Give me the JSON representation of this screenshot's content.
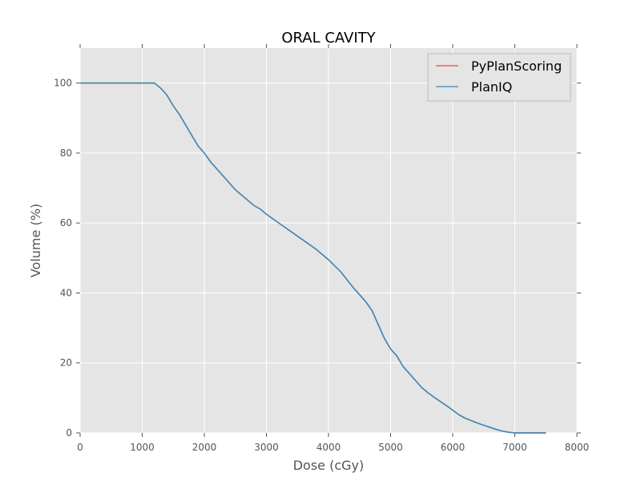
{
  "chart_data": {
    "type": "line",
    "title": "ORAL CAVITY",
    "xlabel": "Dose (cGy)",
    "ylabel": "Volume (%)",
    "xlim": [
      0,
      8000
    ],
    "ylim": [
      0,
      110
    ],
    "xticks": [
      0,
      1000,
      2000,
      3000,
      4000,
      5000,
      6000,
      7000,
      8000
    ],
    "yticks": [
      0,
      20,
      40,
      60,
      80,
      100
    ],
    "grid": true,
    "legend_position": "upper right",
    "series": [
      {
        "name": "PyPlanScoring",
        "color": "#e24a33",
        "x": [
          0,
          1100,
          1200,
          1300,
          1400,
          1500,
          1600,
          1700,
          1800,
          1900,
          2000,
          2100,
          2200,
          2300,
          2400,
          2500,
          2600,
          2700,
          2800,
          2900,
          3000,
          3200,
          3400,
          3600,
          3800,
          4000,
          4200,
          4400,
          4600,
          4700,
          4800,
          4900,
          5000,
          5100,
          5200,
          5300,
          5400,
          5500,
          5600,
          5700,
          5800,
          5900,
          6000,
          6100,
          6200,
          6300,
          6400,
          6500,
          6600,
          6700,
          6800,
          6900,
          7000,
          7500
        ],
        "y": [
          100,
          100,
          100,
          98.5,
          96.5,
          93.5,
          91,
          88,
          85,
          82,
          80,
          77.5,
          75.5,
          73.5,
          71.5,
          69.5,
          68,
          66.5,
          65,
          64,
          62.5,
          60,
          57.5,
          55,
          52.5,
          49.5,
          46,
          41.5,
          37.5,
          35,
          31,
          27,
          24,
          22,
          19,
          17,
          15,
          13,
          11.5,
          10.2,
          9,
          7.8,
          6.5,
          5.2,
          4.2,
          3.5,
          2.8,
          2.2,
          1.6,
          1,
          0.5,
          0.2,
          0,
          0
        ]
      },
      {
        "name": "PlanIQ",
        "color": "#348abd",
        "x": [
          0,
          1100,
          1200,
          1300,
          1400,
          1500,
          1600,
          1700,
          1800,
          1900,
          2000,
          2100,
          2200,
          2300,
          2400,
          2500,
          2600,
          2700,
          2800,
          2900,
          3000,
          3200,
          3400,
          3600,
          3800,
          4000,
          4200,
          4400,
          4600,
          4700,
          4800,
          4900,
          5000,
          5100,
          5200,
          5300,
          5400,
          5500,
          5600,
          5700,
          5800,
          5900,
          6000,
          6100,
          6200,
          6300,
          6400,
          6500,
          6600,
          6700,
          6800,
          6900,
          7000,
          7500
        ],
        "y": [
          100,
          100,
          100,
          98.5,
          96.5,
          93.5,
          91,
          88,
          85,
          82,
          80,
          77.5,
          75.5,
          73.5,
          71.5,
          69.5,
          68,
          66.5,
          65,
          64,
          62.5,
          60,
          57.5,
          55,
          52.5,
          49.5,
          46,
          41.5,
          37.5,
          35,
          31,
          27,
          24,
          22,
          19,
          17,
          15,
          13,
          11.5,
          10.2,
          9,
          7.8,
          6.5,
          5.2,
          4.2,
          3.5,
          2.8,
          2.2,
          1.6,
          1,
          0.5,
          0.2,
          0,
          0
        ]
      }
    ]
  },
  "colors": {
    "plot_background": "#e5e5e5",
    "grid": "#ffffff",
    "legend_background": "#e5e5e5"
  }
}
